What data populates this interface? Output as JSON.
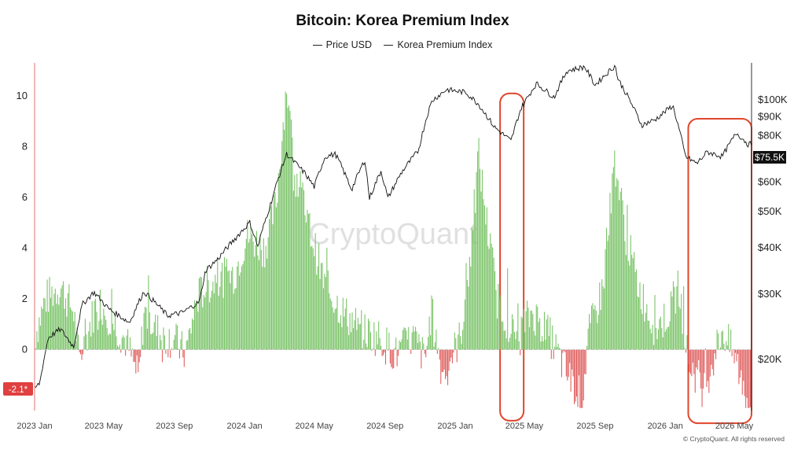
{
  "title": "Bitcoin: Korea Premium Index",
  "legend": [
    {
      "label": "Price USD",
      "color": "#222222"
    },
    {
      "label": "Korea Premium Index",
      "color": "#222222"
    }
  ],
  "watermark": "CryptoQuant",
  "copyright": "© CryptoQuant. All rights reserved",
  "colors": {
    "premium_positive": "#7cc46a",
    "premium_negative": "#e06060",
    "price_line": "#111111",
    "highlight": "#e0462c",
    "left_axis": "#e8a0a0",
    "current_badge": "#111111",
    "current_left_badge": "#e04040"
  },
  "chart_data": {
    "type": "line",
    "title": "Bitcoin: Korea Premium Index",
    "x_ticks": [
      "2023 Jan",
      "2023 May",
      "2023 Sep",
      "2024 Jan",
      "2024 May",
      "2024 Sep",
      "2025 Jan",
      "2025 May",
      "2025 Sep",
      "2026 Jan",
      "2026 May"
    ],
    "x_range": [
      "2023-01-01",
      "2026-05-31"
    ],
    "left_axis": {
      "series": "Korea Premium Index",
      "ticks": [
        10,
        8,
        6,
        4,
        2,
        0
      ],
      "ylim": [
        -2.4,
        11.3
      ]
    },
    "right_axis": {
      "series": "Price USD",
      "scale": "log",
      "ticks": [
        "$100K",
        "$90K",
        "$80K",
        "$70K",
        "$60K",
        "$50K",
        "$40K",
        "$30K",
        "$20K"
      ],
      "tick_values": [
        100000,
        90000,
        80000,
        70000,
        60000,
        50000,
        40000,
        30000,
        20000
      ],
      "ylim": [
        14500,
        125000
      ]
    },
    "current_values": {
      "premium": "-2.1*",
      "price": "$75.5K"
    },
    "series": [
      {
        "name": "Price USD",
        "x": [
          "2023-01-01",
          "2023-01-10",
          "2023-01-25",
          "2023-02-15",
          "2023-03-10",
          "2023-03-25",
          "2023-04-14",
          "2023-05-10",
          "2023-06-15",
          "2023-07-10",
          "2023-08-20",
          "2023-09-15",
          "2023-10-15",
          "2023-10-25",
          "2023-11-15",
          "2023-12-15",
          "2024-01-10",
          "2024-01-24",
          "2024-02-15",
          "2024-03-01",
          "2024-03-14",
          "2024-04-15",
          "2024-05-01",
          "2024-05-20",
          "2024-06-07",
          "2024-07-05",
          "2024-07-28",
          "2024-08-05",
          "2024-08-25",
          "2024-09-06",
          "2024-09-30",
          "2024-10-29",
          "2024-11-13",
          "2024-11-22",
          "2024-12-17",
          "2025-01-20",
          "2025-02-10",
          "2025-03-10",
          "2025-04-08",
          "2025-04-25",
          "2025-05-22",
          "2025-06-22",
          "2025-07-14",
          "2025-08-14",
          "2025-09-01",
          "2025-10-06",
          "2025-10-11",
          "2025-11-21",
          "2025-12-15",
          "2026-01-14",
          "2026-02-05",
          "2026-02-25",
          "2026-03-15",
          "2026-04-10",
          "2026-05-05",
          "2026-05-25"
        ],
        "values": [
          16600,
          17200,
          22800,
          24000,
          21500,
          28000,
          30200,
          27200,
          25000,
          30300,
          26100,
          26600,
          28500,
          34500,
          37000,
          42000,
          46500,
          40000,
          52000,
          62000,
          71000,
          63000,
          58000,
          70000,
          71000,
          57000,
          68500,
          54000,
          64000,
          54000,
          63500,
          72500,
          90000,
          99000,
          106000,
          104000,
          97000,
          84000,
          77000,
          94000,
          110000,
          101000,
          119000,
          122000,
          109000,
          123000,
          113000,
          85000,
          88000,
          96000,
          70000,
          67000,
          72000,
          70000,
          81000,
          75500
        ]
      },
      {
        "name": "Korea Premium Index",
        "x": [
          "2023-01-01",
          "2023-01-20",
          "2023-02-15",
          "2023-03-10",
          "2023-03-20",
          "2023-04-20",
          "2023-05-20",
          "2023-06-10",
          "2023-07-01",
          "2023-07-10",
          "2023-08-10",
          "2023-09-01",
          "2023-09-20",
          "2023-10-10",
          "2023-10-25",
          "2023-11-20",
          "2023-12-15",
          "2024-01-05",
          "2024-02-05",
          "2024-02-25",
          "2024-03-14",
          "2024-03-25",
          "2024-04-20",
          "2024-05-20",
          "2024-06-20",
          "2024-07-20",
          "2024-08-20",
          "2024-09-20",
          "2024-10-20",
          "2024-11-10",
          "2024-11-20",
          "2024-12-10",
          "2025-01-10",
          "2025-02-01",
          "2025-02-10",
          "2025-02-25",
          "2025-03-15",
          "2025-04-15",
          "2025-05-15",
          "2025-06-15",
          "2025-07-15",
          "2025-08-10",
          "2025-08-20",
          "2025-09-15",
          "2025-10-05",
          "2025-10-15",
          "2025-10-25",
          "2025-11-15",
          "2025-12-15",
          "2026-01-10",
          "2026-01-25",
          "2026-02-10",
          "2026-03-10",
          "2026-04-10",
          "2026-05-05",
          "2026-05-25"
        ],
        "values": [
          0.5,
          2.0,
          2.5,
          1.5,
          -0.5,
          2.0,
          1.0,
          0.3,
          -1.2,
          1.5,
          0.5,
          0.4,
          -0.2,
          2.0,
          2.5,
          2.8,
          3.0,
          4.5,
          4.0,
          5.8,
          10.5,
          7.5,
          5.0,
          2.5,
          1.5,
          0.8,
          0.5,
          -0.2,
          0.5,
          -0.4,
          1.5,
          -1.0,
          0.5,
          4.5,
          7.8,
          5.0,
          2.0,
          0.5,
          1.5,
          0.5,
          -1.0,
          -2.0,
          0.5,
          2.5,
          7.5,
          6.0,
          4.5,
          2.5,
          0.8,
          1.5,
          2.5,
          -0.5,
          -1.5,
          0.8,
          -0.5,
          -2.1
        ]
      }
    ],
    "highlights": [
      {
        "x_start": "2025-03-20",
        "x_end": "2025-04-30",
        "y_top_premium": 10.1,
        "y_bottom_premium": -2.8
      },
      {
        "x_start": "2026-02-10",
        "x_end": "2026-05-31",
        "y_top_premium": 9.1,
        "y_bottom_premium": -2.9
      }
    ],
    "grid": false,
    "legend_position": "top-center"
  }
}
